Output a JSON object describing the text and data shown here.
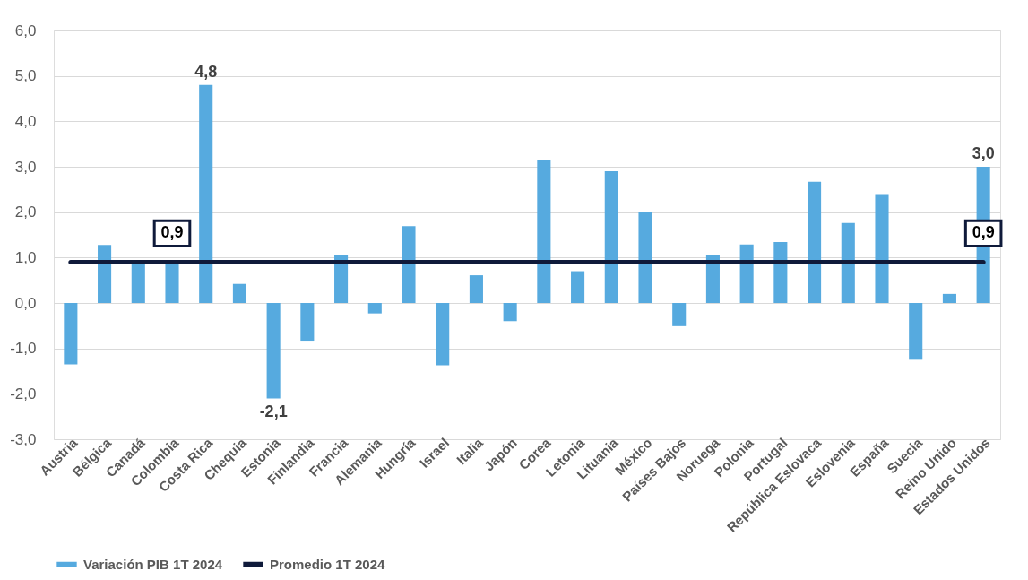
{
  "chart_data": {
    "type": "bar",
    "categories": [
      "Austria",
      "Bélgica",
      "Canadá",
      "Colombia",
      "Costa Rica",
      "Chequia",
      "Estonia",
      "Finlandia",
      "Francia",
      "Alemania",
      "Hungría",
      "Israel",
      "Italia",
      "Japón",
      "Corea",
      "Letonia",
      "Lituania",
      "México",
      "Países Bajos",
      "Noruega",
      "Polonia",
      "Portugal",
      "República Eslovaca",
      "Eslovenia",
      "España",
      "Suecia",
      "Reino Unido",
      "Estados Unidos"
    ],
    "series": [
      {
        "name": "Variación PIB 1T 2024",
        "color": "#56aadf",
        "values": [
          -1.35,
          1.28,
          0.9,
          0.9,
          4.8,
          0.42,
          -2.1,
          -0.83,
          1.06,
          -0.23,
          1.69,
          -1.37,
          0.61,
          -0.4,
          3.16,
          0.7,
          2.9,
          2.0,
          -0.51,
          1.06,
          1.29,
          1.34,
          2.67,
          1.76,
          2.4,
          -1.25,
          0.2,
          3.0
        ],
        "value_labels": [
          null,
          null,
          null,
          null,
          "4,8",
          null,
          "-2,1",
          null,
          null,
          null,
          null,
          null,
          null,
          null,
          null,
          null,
          null,
          null,
          null,
          null,
          null,
          null,
          null,
          null,
          null,
          null,
          null,
          "3,0"
        ]
      },
      {
        "name": "Promedio 1T 2024",
        "type": "line",
        "color": "#0f1a3a",
        "values": [
          0.9,
          0.9,
          0.9,
          0.9,
          0.9,
          0.9,
          0.9,
          0.9,
          0.9,
          0.9,
          0.9,
          0.9,
          0.9,
          0.9,
          0.9,
          0.9,
          0.9,
          0.9,
          0.9,
          0.9,
          0.9,
          0.9,
          0.9,
          0.9,
          0.9,
          0.9,
          0.9,
          0.9
        ],
        "value_labels": [
          null,
          null,
          null,
          "0,9",
          null,
          null,
          null,
          null,
          null,
          null,
          null,
          null,
          null,
          null,
          null,
          null,
          null,
          null,
          null,
          null,
          null,
          null,
          null,
          null,
          null,
          null,
          null,
          "0,9"
        ]
      }
    ],
    "ylim": [
      -3.0,
      6.0
    ],
    "yticks": [
      {
        "value": -3,
        "label": "-3,0"
      },
      {
        "value": -2,
        "label": "-2,0"
      },
      {
        "value": -1,
        "label": "-1,0"
      },
      {
        "value": 0,
        "label": "0,0"
      },
      {
        "value": 1,
        "label": "1,0"
      },
      {
        "value": 2,
        "label": "2,0"
      },
      {
        "value": 3,
        "label": "3,0"
      },
      {
        "value": 4,
        "label": "4,0"
      },
      {
        "value": 5,
        "label": "5,0"
      },
      {
        "value": 6,
        "label": "6,0"
      }
    ],
    "grid": "y",
    "legend": "bottom"
  }
}
